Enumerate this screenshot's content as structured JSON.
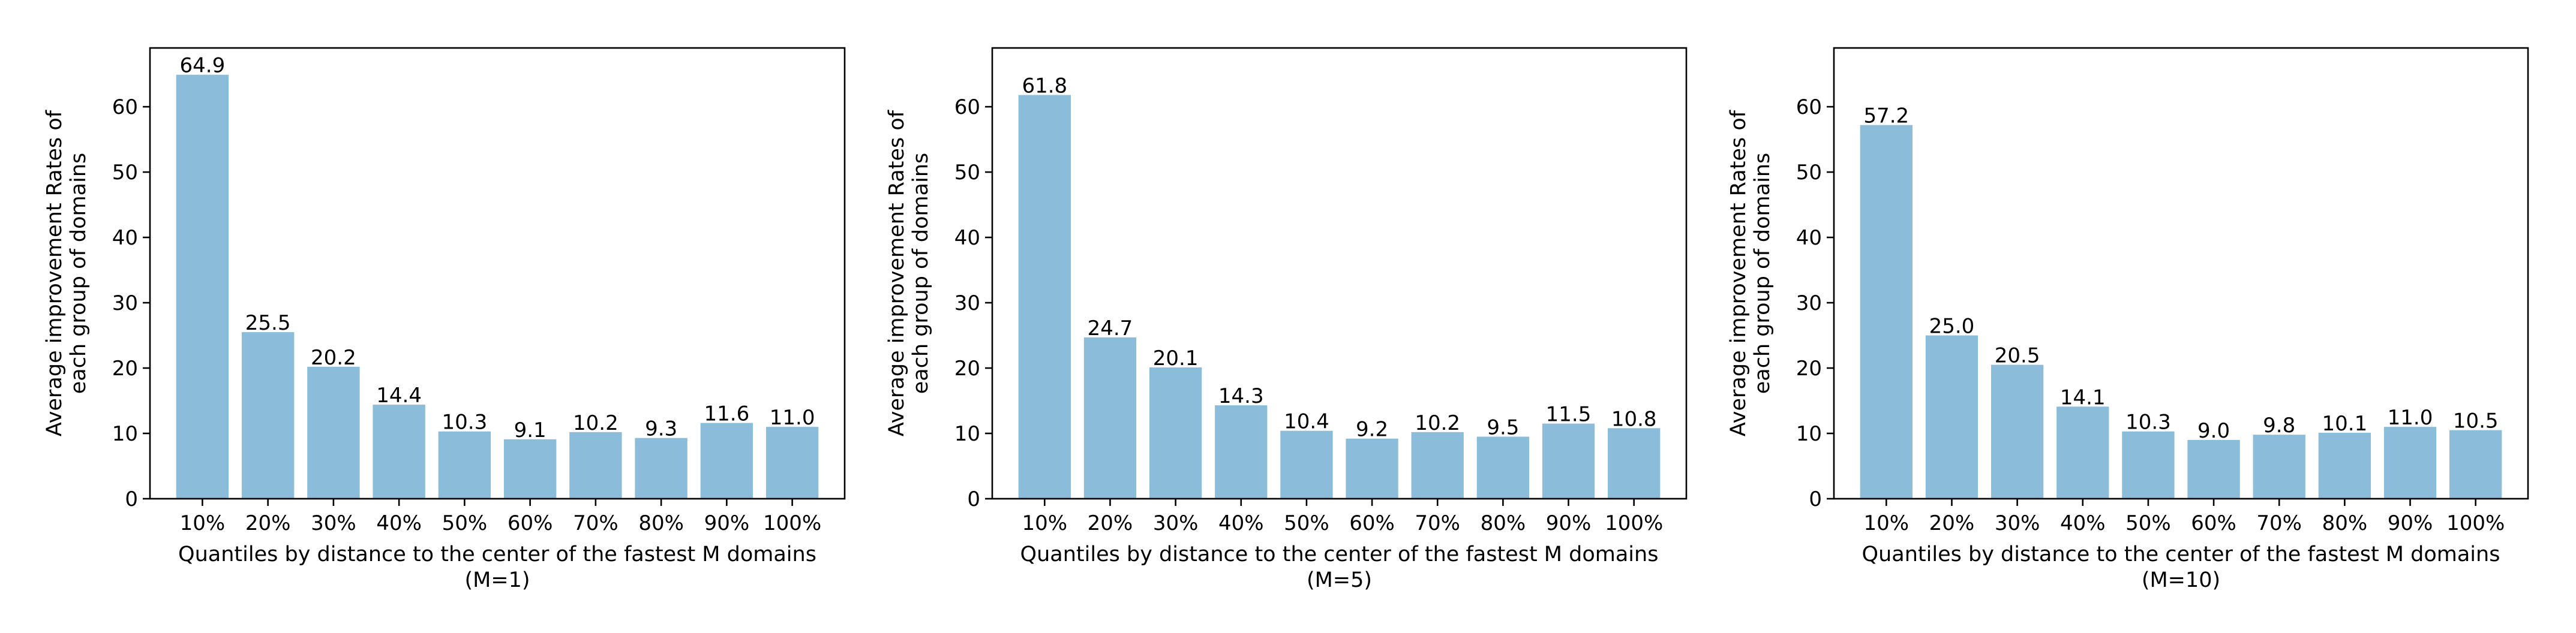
{
  "colors": {
    "bar": "#8bbcd9",
    "axis": "#000000",
    "background": "#ffffff"
  },
  "chart_data": [
    {
      "type": "bar",
      "categories": [
        "10%",
        "20%",
        "30%",
        "40%",
        "50%",
        "60%",
        "70%",
        "80%",
        "90%",
        "100%"
      ],
      "values": [
        64.9,
        25.5,
        20.2,
        14.4,
        10.3,
        9.1,
        10.2,
        9.3,
        11.6,
        11.0
      ],
      "value_labels": [
        "64.9",
        "25.5",
        "20.2",
        "14.4",
        "10.3",
        "9.1",
        "10.2",
        "9.3",
        "11.6",
        "11.0"
      ],
      "xlabel": [
        "Quantiles by distance to the center of the fastest M domains",
        "(M=1)"
      ],
      "ylabel": [
        "Average improvement Rates of",
        "each group of domains"
      ],
      "ylim": [
        0,
        69
      ],
      "yticks": [
        0,
        10,
        20,
        30,
        40,
        50,
        60
      ],
      "grid": false
    },
    {
      "type": "bar",
      "categories": [
        "10%",
        "20%",
        "30%",
        "40%",
        "50%",
        "60%",
        "70%",
        "80%",
        "90%",
        "100%"
      ],
      "values": [
        61.8,
        24.7,
        20.1,
        14.3,
        10.4,
        9.2,
        10.2,
        9.5,
        11.5,
        10.8
      ],
      "value_labels": [
        "61.8",
        "24.7",
        "20.1",
        "14.3",
        "10.4",
        "9.2",
        "10.2",
        "9.5",
        "11.5",
        "10.8"
      ],
      "xlabel": [
        "Quantiles by distance to the center of the fastest M domains",
        "(M=5)"
      ],
      "ylabel": [
        "Average improvement Rates of",
        "each group of domains"
      ],
      "ylim": [
        0,
        69
      ],
      "yticks": [
        0,
        10,
        20,
        30,
        40,
        50,
        60
      ],
      "grid": false
    },
    {
      "type": "bar",
      "categories": [
        "10%",
        "20%",
        "30%",
        "40%",
        "50%",
        "60%",
        "70%",
        "80%",
        "90%",
        "100%"
      ],
      "values": [
        57.2,
        25.0,
        20.5,
        14.1,
        10.3,
        9.0,
        9.8,
        10.1,
        11.0,
        10.5
      ],
      "value_labels": [
        "57.2",
        "25.0",
        "20.5",
        "14.1",
        "10.3",
        "9.0",
        "9.8",
        "10.1",
        "11.0",
        "10.5"
      ],
      "xlabel": [
        "Quantiles by distance to the center of the fastest M domains",
        "(M=10)"
      ],
      "ylabel": [
        "Average improvement Rates of",
        "each group of domains"
      ],
      "ylim": [
        0,
        69
      ],
      "yticks": [
        0,
        10,
        20,
        30,
        40,
        50,
        60
      ],
      "grid": false
    }
  ]
}
